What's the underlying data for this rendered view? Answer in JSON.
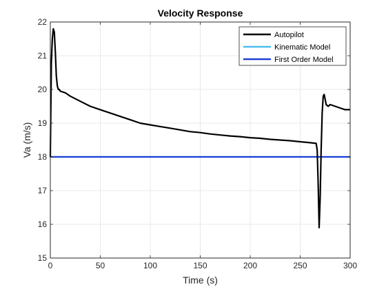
{
  "chart_data": {
    "type": "line",
    "title": "Velocity Response",
    "xlabel": "Time (s)",
    "ylabel": "Va (m/s)",
    "xlim": [
      0,
      300
    ],
    "ylim": [
      15,
      22
    ],
    "xticks": [
      0,
      50,
      100,
      150,
      200,
      250,
      300
    ],
    "yticks": [
      15,
      16,
      17,
      18,
      19,
      20,
      21,
      22
    ],
    "grid": true,
    "legend_position": "top-right",
    "series": [
      {
        "name": "Autopilot",
        "color": "#000000",
        "x": [
          0,
          1,
          2,
          3,
          4,
          5,
          6,
          7,
          8,
          9,
          10,
          15,
          20,
          30,
          40,
          50,
          60,
          70,
          80,
          90,
          100,
          110,
          120,
          130,
          140,
          150,
          160,
          170,
          180,
          190,
          200,
          210,
          220,
          230,
          240,
          250,
          260,
          266,
          267,
          268,
          269,
          270,
          271,
          272,
          273,
          274,
          275,
          276,
          278,
          280,
          285,
          290,
          295,
          300
        ],
        "y": [
          18,
          20.8,
          21.5,
          21.8,
          21.7,
          21.1,
          20.4,
          20.1,
          20.0,
          20.0,
          19.95,
          19.9,
          19.8,
          19.65,
          19.5,
          19.4,
          19.3,
          19.2,
          19.1,
          19.0,
          18.95,
          18.9,
          18.85,
          18.8,
          18.75,
          18.72,
          18.68,
          18.65,
          18.62,
          18.6,
          18.57,
          18.55,
          18.52,
          18.5,
          18.48,
          18.45,
          18.42,
          18.4,
          18.2,
          17.2,
          15.9,
          16.8,
          18.2,
          19.3,
          19.8,
          19.85,
          19.7,
          19.55,
          19.5,
          19.55,
          19.5,
          19.45,
          19.4,
          19.4
        ]
      },
      {
        "name": "Kinematic Model",
        "color": "#4dbeee",
        "x": [
          0,
          300
        ],
        "y": [
          18,
          18
        ]
      },
      {
        "name": "First Order Model",
        "color": "#1f3fd6",
        "x": [
          0,
          300
        ],
        "y": [
          18,
          18
        ]
      }
    ]
  }
}
